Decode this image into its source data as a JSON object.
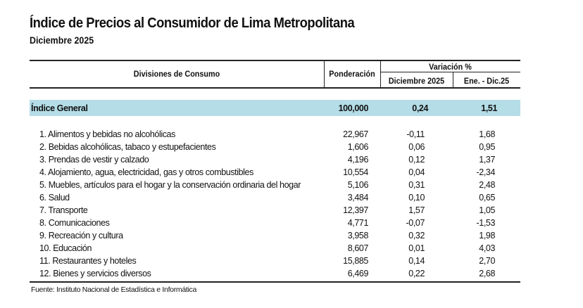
{
  "title": "Índice de Precios al Consumidor de Lima Metropolitana",
  "subtitle": "Diciembre 2025",
  "table": {
    "headers": {
      "division": "Divisiones de Consumo",
      "weight": "Ponderación",
      "variation_group": "Variación %",
      "month": "Diciembre 2025",
      "ytd": "Ene. - Dic.25"
    },
    "general": {
      "label": "Índice General",
      "weight": "100,000",
      "month": "0,24",
      "ytd": "1,51"
    },
    "general_band_color": "#b5dde7",
    "rows": [
      {
        "label": "1. Alimentos y bebidas no alcohólicas",
        "weight": "22,967",
        "month": "-0,11",
        "ytd": "1,68"
      },
      {
        "label": "2. Bebidas alcohólicas, tabaco y estupefacientes",
        "weight": "1,606",
        "month": "0,06",
        "ytd": "0,95"
      },
      {
        "label": "3. Prendas de vestir y calzado",
        "weight": "4,196",
        "month": "0,12",
        "ytd": "1,37"
      },
      {
        "label": "4. Alojamiento, agua, electricidad, gas y otros combustibles",
        "weight": "10,554",
        "month": "0,04",
        "ytd": "-2,34"
      },
      {
        "label": "5. Muebles, artículos para el hogar y la conservación ordinaria del hogar",
        "weight": "5,106",
        "month": "0,31",
        "ytd": "2,48"
      },
      {
        "label": "6. Salud",
        "weight": "3,484",
        "month": "0,10",
        "ytd": "0,65"
      },
      {
        "label": "7. Transporte",
        "weight": "12,397",
        "month": "1,57",
        "ytd": "1,05"
      },
      {
        "label": "8. Comunicaciones",
        "weight": "4,771",
        "month": "-0,07",
        "ytd": "-1,53"
      },
      {
        "label": "9. Recreación y cultura",
        "weight": "3,958",
        "month": "0,32",
        "ytd": "1,98"
      },
      {
        "label": "10. Educación",
        "weight": "8,607",
        "month": "0,01",
        "ytd": "4,03"
      },
      {
        "label": "11. Restaurantes y hoteles",
        "weight": "15,885",
        "month": "0,14",
        "ytd": "2,70"
      },
      {
        "label": "12. Bienes y servicios diversos",
        "weight": "6,469",
        "month": "0,22",
        "ytd": "2,68"
      }
    ]
  },
  "footer": "Fuente: Instituto Nacional de Estadística e Informática"
}
